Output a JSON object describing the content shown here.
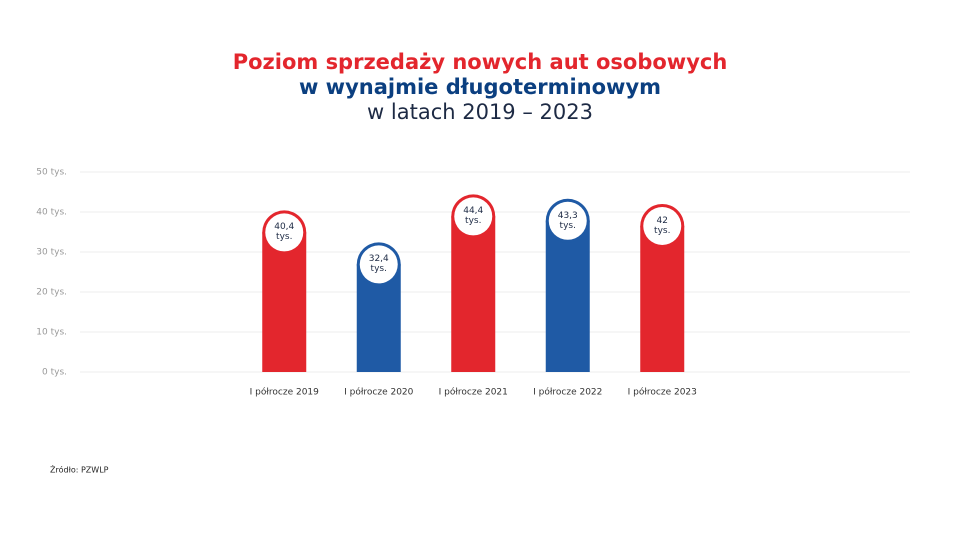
{
  "chart_data": {
    "type": "bar",
    "title": [
      "Poziom sprzedaży nowych aut osobowych",
      "w wynajmie długoterminowym"
    ],
    "title_colors": [
      "#e3262d",
      "#0b3f80"
    ],
    "subtitle": "w latach 2019 – 2023",
    "categories": [
      "I półrocze 2019",
      "I półrocze 2020",
      "I półrocze 2021",
      "I półrocze 2022",
      "I półrocze 2023"
    ],
    "values": [
      40.4,
      32.4,
      44.4,
      43.3,
      42
    ],
    "value_labels": [
      "40,4 tys.",
      "32,4 tys.",
      "44,4 tys.",
      "43,3 tys.",
      "42 tys."
    ],
    "colors": [
      "#e3262d",
      "#1f5aa5",
      "#e3262d",
      "#1f5aa5",
      "#e3262d"
    ],
    "ylim": [
      0,
      50
    ],
    "yticks": [
      {
        "value": 0,
        "label": "0 tys."
      },
      {
        "value": 10,
        "label": "10 tys."
      },
      {
        "value": 20,
        "label": "20 tys."
      },
      {
        "value": 30,
        "label": "30 tys."
      },
      {
        "value": 40,
        "label": "40 tys."
      },
      {
        "value": 50,
        "label": "50 tys."
      }
    ],
    "grid": true,
    "source": "Źródło: PZWLP"
  }
}
